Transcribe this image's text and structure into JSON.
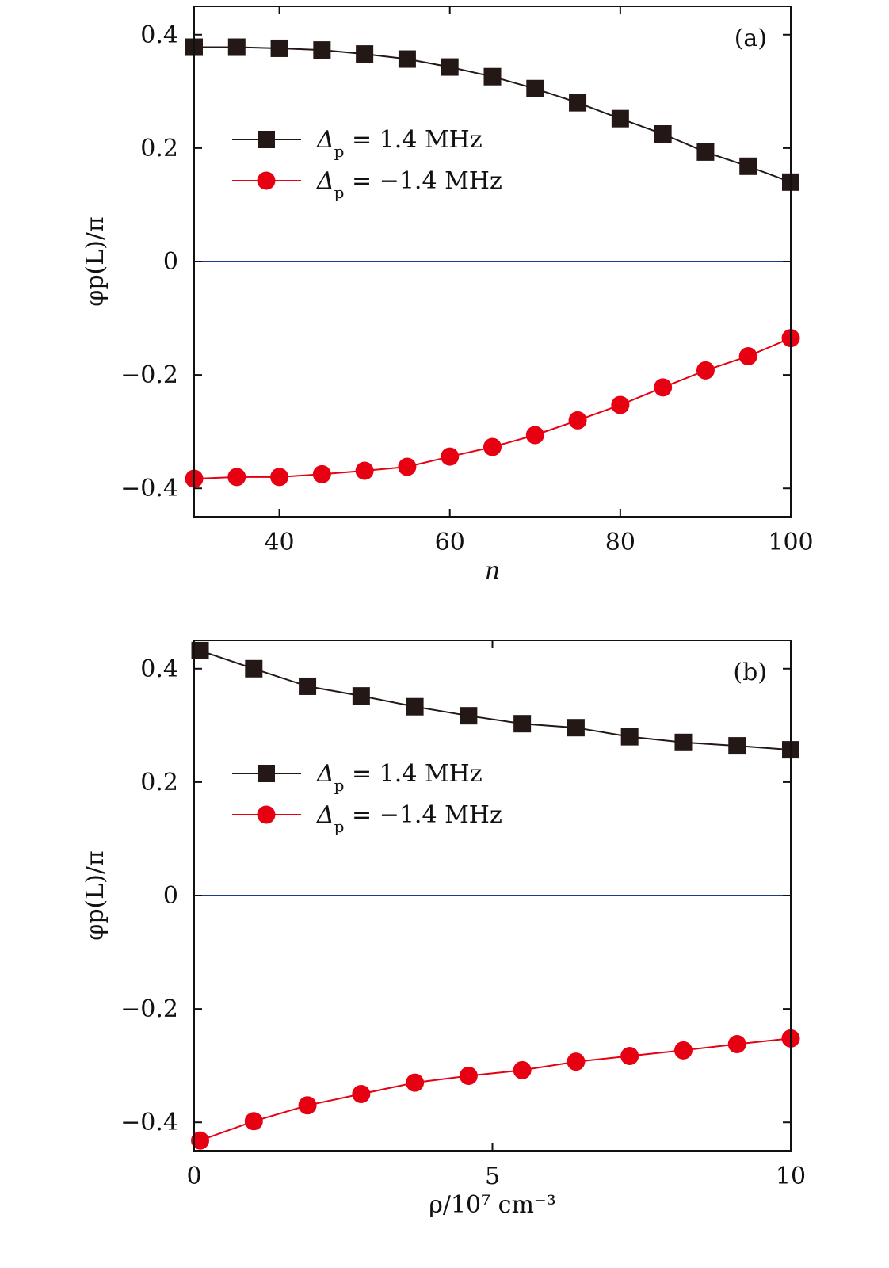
{
  "colors": {
    "series_pos": "#231815",
    "series_neg": "#e60012",
    "zero_line": "#1d3a8c",
    "axes": "#111111"
  },
  "chart_data": [
    {
      "type": "line",
      "panel_label": "(a)",
      "xlabel": "n",
      "ylabel": "φp(L)/π",
      "xlim": [
        30,
        100
      ],
      "ylim": [
        -0.45,
        0.45
      ],
      "xticks": [
        40,
        60,
        80,
        100
      ],
      "xtick_labels": [
        "40",
        "60",
        "80",
        "100"
      ],
      "yticks": [
        0.4,
        0.2,
        0,
        -0.2,
        -0.4
      ],
      "ytick_labels": [
        "0.4",
        "0.2",
        "0",
        "−0.2",
        "−0.4"
      ],
      "grid": false,
      "legend_position": "middle-left",
      "zero_line": true,
      "x": [
        30,
        35,
        40,
        45,
        50,
        55,
        60,
        65,
        70,
        75,
        80,
        85,
        90,
        95,
        100
      ],
      "series": [
        {
          "name": "Δp = 1.4 MHz",
          "legend_symbol": "Δ",
          "legend_sub": "p",
          "legend_rest": " = 1.4 MHz",
          "marker": "square",
          "color": "#231815",
          "values": [
            0.378,
            0.378,
            0.376,
            0.373,
            0.366,
            0.357,
            0.343,
            0.326,
            0.305,
            0.28,
            0.252,
            0.225,
            0.193,
            0.168,
            0.14
          ]
        },
        {
          "name": "Δp = −1.4 MHz",
          "legend_symbol": "Δ",
          "legend_sub": "p",
          "legend_rest": " = −1.4 MHz",
          "marker": "circle",
          "color": "#e60012",
          "values": [
            -0.383,
            -0.38,
            -0.38,
            -0.375,
            -0.369,
            -0.362,
            -0.344,
            -0.327,
            -0.306,
            -0.28,
            -0.253,
            -0.222,
            -0.192,
            -0.167,
            -0.135
          ]
        }
      ]
    },
    {
      "type": "line",
      "panel_label": "(b)",
      "xlabel": "ρ/10⁷ cm⁻³",
      "ylabel": "φp(L)/π",
      "xlim": [
        0,
        10
      ],
      "ylim": [
        -0.45,
        0.45
      ],
      "xticks": [
        0,
        5,
        10
      ],
      "xtick_labels": [
        "0",
        "5",
        "10"
      ],
      "yticks": [
        0.4,
        0.2,
        0,
        -0.2,
        -0.4
      ],
      "ytick_labels": [
        "0.4",
        "0.2",
        "0",
        "−0.2",
        "−0.4"
      ],
      "grid": false,
      "legend_position": "middle-left",
      "zero_line": true,
      "x": [
        0.1,
        1.0,
        1.9,
        2.8,
        3.7,
        4.6,
        5.5,
        6.4,
        7.3,
        8.2,
        9.1,
        10.0
      ],
      "series": [
        {
          "name": "Δp = 1.4 MHz",
          "legend_symbol": "Δ",
          "legend_sub": "p",
          "legend_rest": " = 1.4 MHz",
          "marker": "square",
          "color": "#231815",
          "values": [
            0.432,
            0.4,
            0.369,
            0.352,
            0.333,
            0.317,
            0.303,
            0.296,
            0.28,
            0.27,
            0.264,
            0.257
          ]
        },
        {
          "name": "Δp = −1.4 MHz",
          "legend_symbol": "Δ",
          "legend_sub": "p",
          "legend_rest": " = −1.4 MHz",
          "marker": "circle",
          "color": "#e60012",
          "values": [
            -0.432,
            -0.398,
            -0.37,
            -0.35,
            -0.33,
            -0.318,
            -0.308,
            -0.293,
            -0.283,
            -0.273,
            -0.262,
            -0.252
          ]
        }
      ]
    }
  ]
}
